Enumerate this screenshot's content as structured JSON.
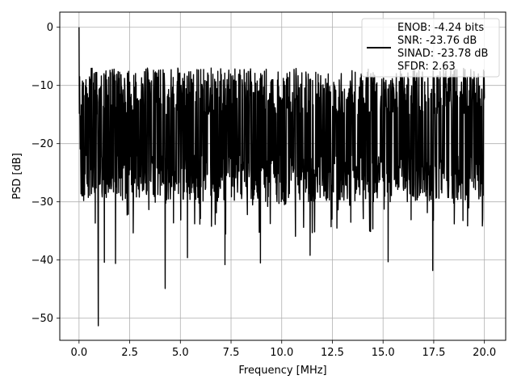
{
  "chart_data": {
    "type": "line",
    "title": "",
    "xlabel": "Frequency [MHz]",
    "ylabel": "PSD [dB]",
    "xlim": [
      -0.95,
      21.05
    ],
    "ylim": [
      -53.8,
      2.6
    ],
    "xticks": [
      0.0,
      2.5,
      5.0,
      7.5,
      10.0,
      12.5,
      15.0,
      17.5,
      20.0
    ],
    "xtick_labels": [
      "0.0",
      "2.5",
      "5.0",
      "7.5",
      "10.0",
      "12.5",
      "15.0",
      "17.5",
      "20.0"
    ],
    "yticks": [
      0,
      -10,
      -20,
      -30,
      -40,
      -50
    ],
    "ytick_labels": [
      "0",
      "−10",
      "−20",
      "−30",
      "−40",
      "−50"
    ],
    "grid": true,
    "legend": {
      "placement": "top-right",
      "entries": [
        "ENOB: -4.24 bits",
        "SNR: -23.76 dB",
        "SINAD: -23.78 dB",
        "SFDR: 2.63"
      ]
    },
    "series": [
      {
        "color": "#000000",
        "x_range": [
          0.0,
          20.0
        ],
        "envelope_top": -7,
        "envelope_bottom": -30,
        "peak_start": 0.0,
        "dips": [
          {
            "x": 0.95,
            "y": -51.3
          },
          {
            "x": 1.25,
            "y": -40.4
          },
          {
            "x": 1.8,
            "y": -40.6
          },
          {
            "x": 4.25,
            "y": -44.9
          },
          {
            "x": 5.35,
            "y": -39.6
          },
          {
            "x": 7.2,
            "y": -40.8
          },
          {
            "x": 8.95,
            "y": -40.5
          },
          {
            "x": 11.4,
            "y": -39.2
          },
          {
            "x": 15.25,
            "y": -40.3
          },
          {
            "x": 17.45,
            "y": -41.8
          }
        ]
      }
    ]
  }
}
